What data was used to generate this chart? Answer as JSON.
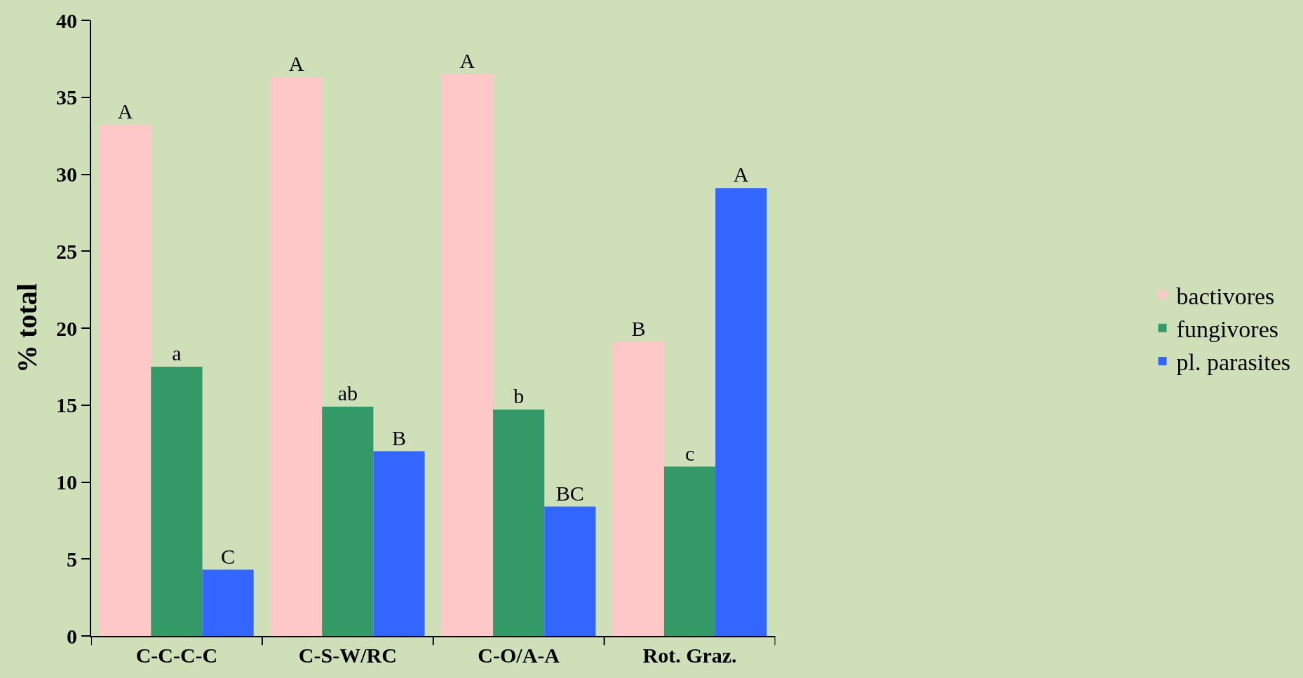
{
  "chart_data": {
    "type": "bar",
    "ylabel": "% total",
    "categories": [
      "C-C-C-C",
      "C-S-W/RC",
      "C-O/A-A",
      "Rot. Graz."
    ],
    "series": [
      {
        "name": "bactivores",
        "color": "#ffc8c8",
        "values": [
          33.2,
          36.3,
          36.5,
          19.1
        ],
        "value_labels": [
          "A",
          "A",
          "A",
          "B"
        ]
      },
      {
        "name": "fungivores",
        "color": "#339966",
        "values": [
          17.5,
          14.9,
          14.7,
          11.0
        ],
        "value_labels": [
          "a",
          "ab",
          "b",
          "c"
        ]
      },
      {
        "name": "pl. parasites",
        "color": "#3366ff",
        "values": [
          4.3,
          12.0,
          8.4,
          29.1
        ],
        "value_labels": [
          "C",
          "B",
          "BC",
          "A"
        ]
      }
    ],
    "ylim": [
      0,
      40
    ],
    "yticks": [
      0,
      5,
      10,
      15,
      20,
      25,
      30,
      35,
      40
    ],
    "grid": false,
    "legend": "right"
  }
}
